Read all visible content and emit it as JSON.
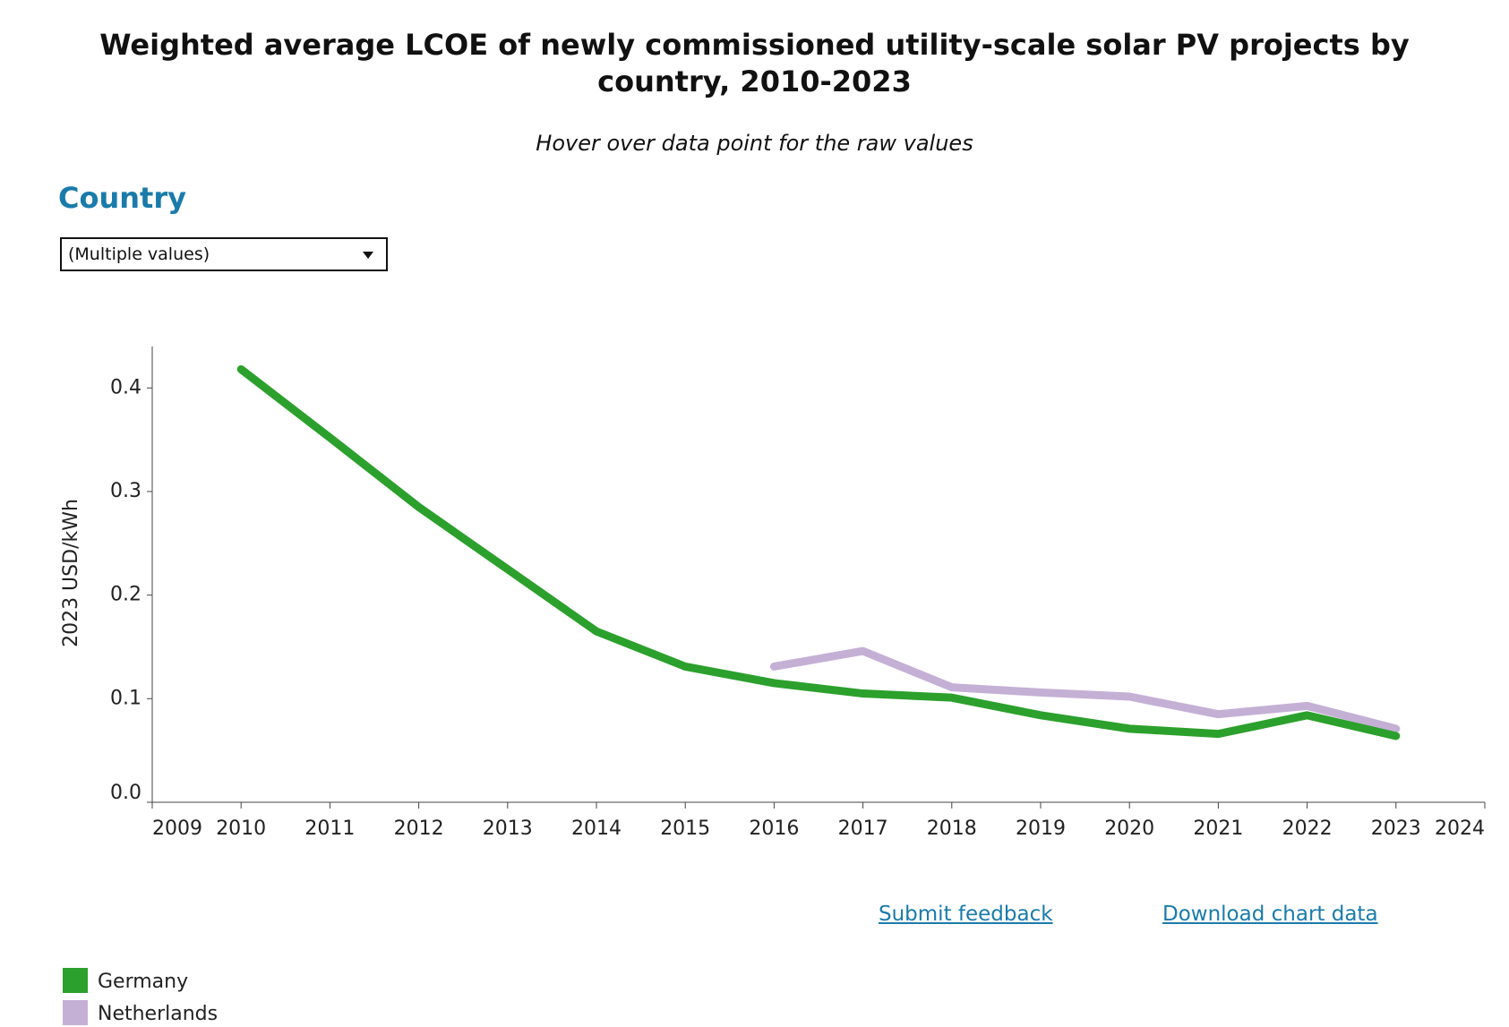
{
  "chart_data": {
    "type": "line",
    "title": "Weighted average LCOE of newly commissioned utility-scale solar PV projects by country, 2010-2023",
    "subtitle": "Hover over data point for the raw values",
    "y_label": "2023 USD/kWh",
    "x": [
      2010,
      2011,
      2012,
      2013,
      2014,
      2015,
      2016,
      2017,
      2018,
      2019,
      2020,
      2021,
      2022,
      2023
    ],
    "series": [
      {
        "name": "Germany",
        "color": "#2ca02c",
        "values": [
          0.418,
          0.352,
          0.285,
          0.225,
          0.165,
          0.131,
          0.115,
          0.105,
          0.101,
          0.084,
          0.071,
          0.066,
          0.084,
          0.064
        ]
      },
      {
        "name": "Netherlands",
        "color": "#c5b0d5",
        "values": [
          null,
          null,
          null,
          null,
          null,
          null,
          0.131,
          0.146,
          0.111,
          0.106,
          0.102,
          0.085,
          0.093,
          0.071
        ]
      }
    ],
    "xlim": [
      2009,
      2024
    ],
    "xticks": [
      2009,
      2010,
      2011,
      2012,
      2013,
      2014,
      2015,
      2016,
      2017,
      2018,
      2019,
      2020,
      2021,
      2022,
      2023,
      2024
    ],
    "ylim": [
      0,
      0.44
    ],
    "yticks": [
      {
        "value": 0,
        "label": "0.0"
      },
      0.1,
      0.2,
      0.3,
      0.4
    ],
    "grid": false
  },
  "filter": {
    "label": "Country",
    "value": "(Multiple values)"
  },
  "links": [
    "Submit feedback",
    "Download chart data"
  ]
}
